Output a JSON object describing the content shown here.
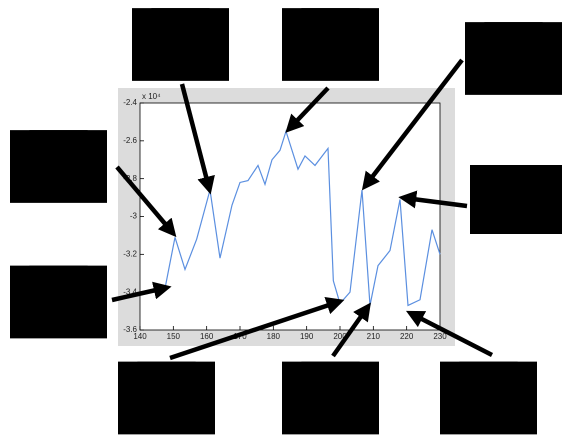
{
  "chart_data": {
    "type": "line",
    "exponent_label": "x 10⁴",
    "x": [
      147.5,
      150.5,
      153.5,
      157,
      161,
      164,
      167.6,
      170,
      172.4,
      175.4,
      177.5,
      179.6,
      182,
      183.8,
      185.6,
      187.4,
      189.5,
      192.5,
      196.4,
      198,
      200,
      203,
      206.6,
      209,
      211.4,
      215,
      218,
      220.4,
      224,
      227.6,
      230
    ],
    "series": [
      {
        "color": "#5b8fe0",
        "values": [
          -3.38,
          -3.11,
          -3.28,
          -3.12,
          -2.86,
          -3.22,
          -2.94,
          -2.82,
          -2.81,
          -2.73,
          -2.83,
          -2.7,
          -2.65,
          -2.55,
          -2.65,
          -2.75,
          -2.68,
          -2.73,
          -2.64,
          -3.34,
          -3.46,
          -3.4,
          -2.86,
          -3.47,
          -3.26,
          -3.18,
          -2.91,
          -3.47,
          -3.44,
          -3.07,
          -3.2
        ]
      }
    ],
    "xlim": [
      140,
      230
    ],
    "xticks": [
      140,
      150,
      160,
      170,
      180,
      190,
      200,
      210,
      220,
      230
    ],
    "ylim": [
      -3.6,
      -2.4
    ],
    "yticks": [
      -2.4,
      -2.6,
      -2.8,
      -3,
      -3.2,
      -3.4,
      -3.6
    ]
  }
}
